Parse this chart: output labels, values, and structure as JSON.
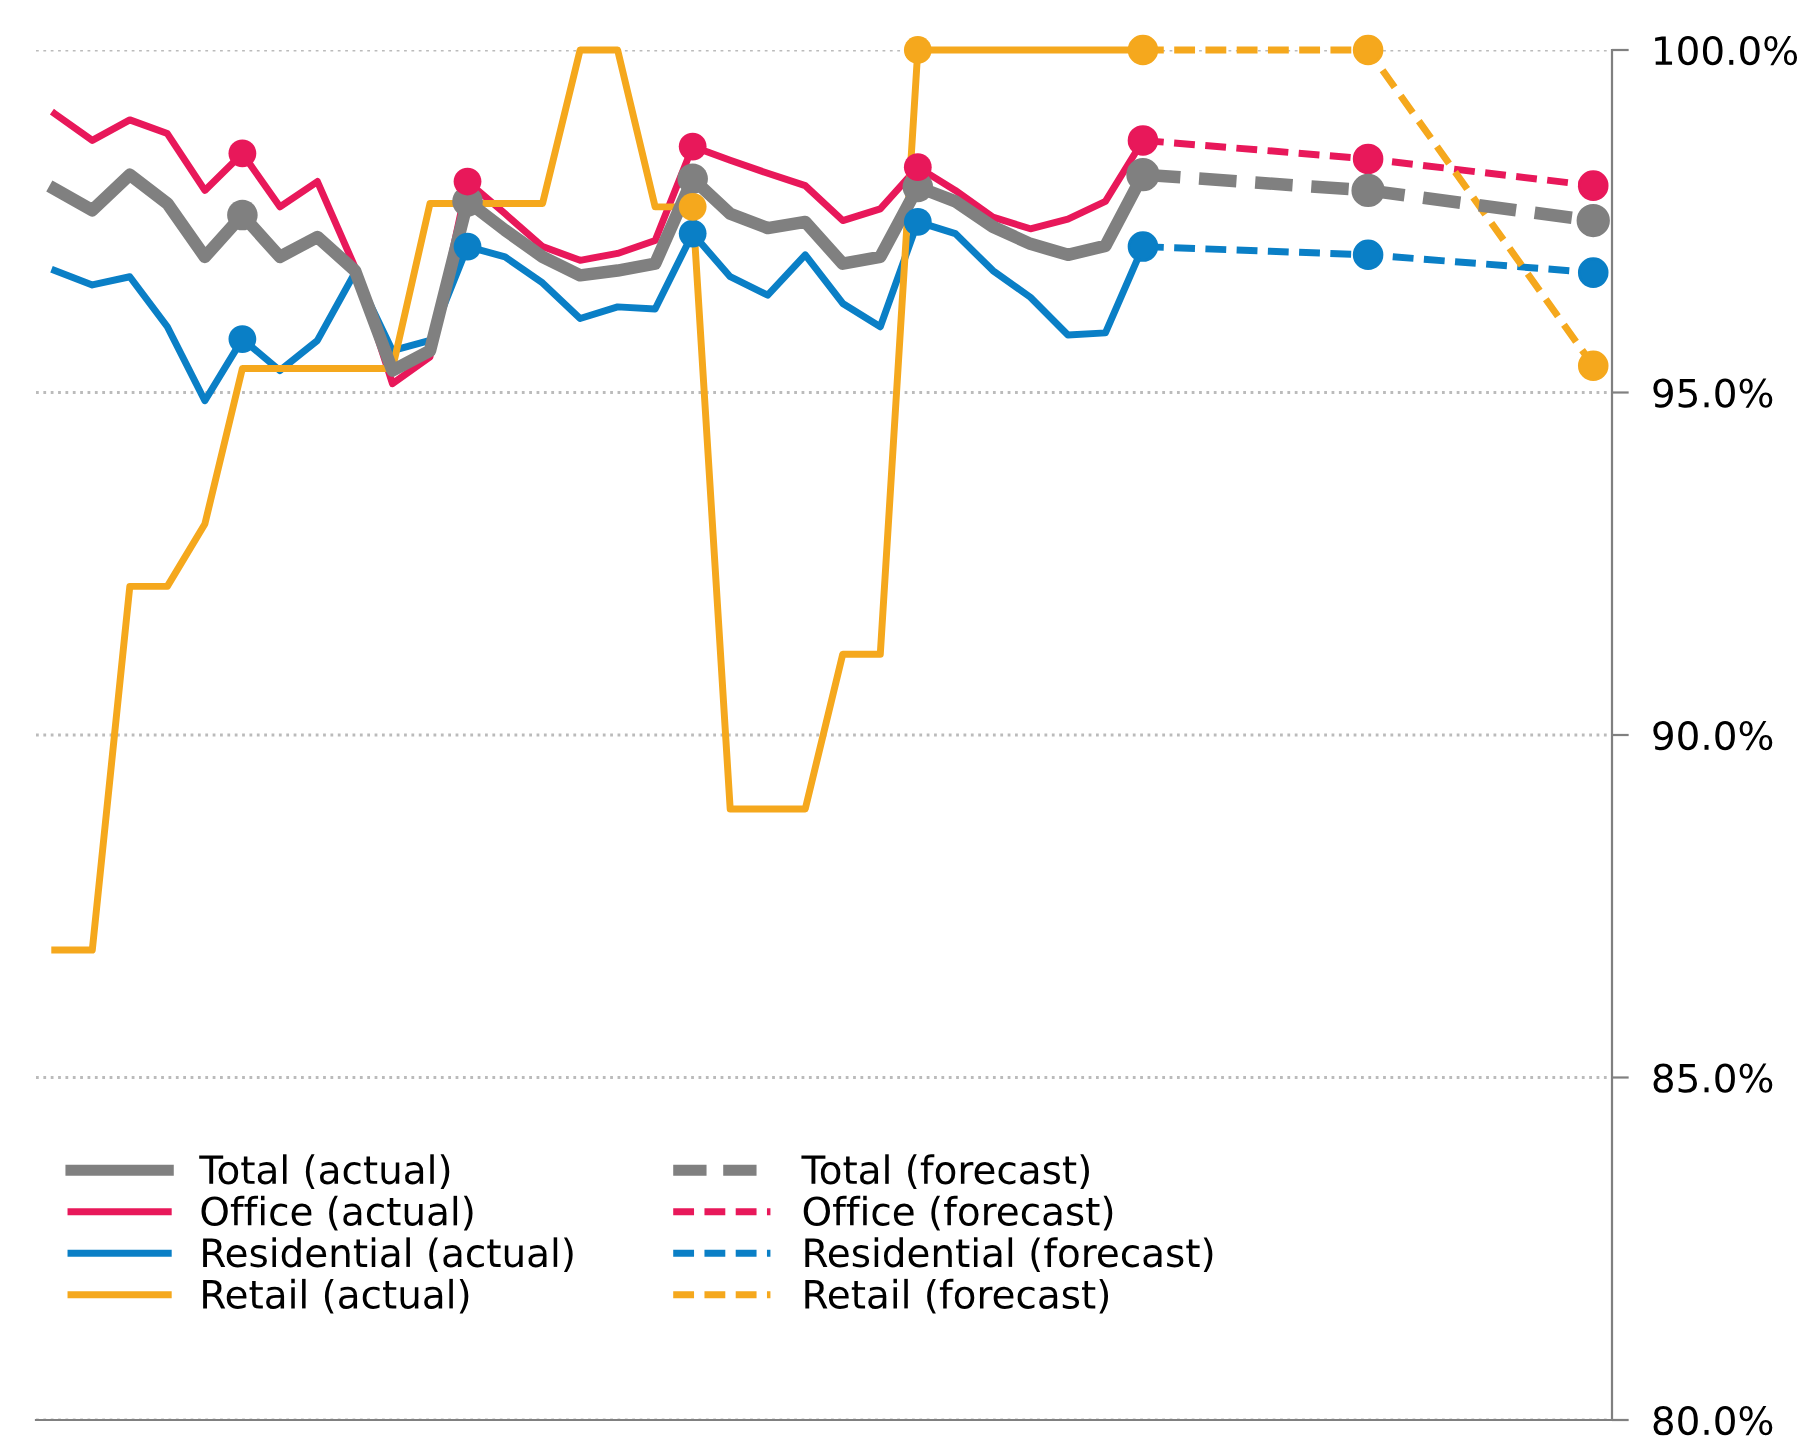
{
  "chart_data": {
    "type": "line",
    "categories": [
      null,
      null,
      null,
      null,
      null,
      null,
      null,
      null,
      null,
      null,
      null,
      null,
      null,
      null,
      null,
      null,
      null,
      null,
      null,
      null,
      null,
      null,
      null,
      null,
      null,
      null,
      null,
      null,
      null,
      null,
      null,
      null,
      null,
      null,
      null,
      null,
      null,
      null,
      null,
      null,
      null,
      null
    ],
    "ylim": [
      80,
      100
    ],
    "yticks": [
      {
        "value": 80,
        "label": "80.0%"
      },
      {
        "value": 85,
        "label": "85.0%"
      },
      {
        "value": 90,
        "label": "90.0%"
      },
      {
        "value": 95,
        "label": "95.0%"
      },
      {
        "value": 100,
        "label": "100.0%"
      }
    ],
    "tick_labels": "y",
    "grid": "y",
    "legend": "bottom left",
    "marker": "none",
    "series": [
      {
        "name": "Total (actual)",
        "color": "#808080",
        "line_style": "solid",
        "values": [
          97.97,
          97.66,
          98.18,
          97.76,
          96.98,
          97.59,
          96.98,
          97.27,
          96.78,
          95.32,
          95.61,
          97.79,
          97.37,
          96.98,
          96.71,
          96.78,
          96.88,
          98.12,
          97.61,
          97.4,
          97.49,
          96.88,
          96.98,
          98.0,
          97.79,
          97.42,
          97.17,
          97.01,
          97.14,
          98.18,
          null,
          null,
          null,
          null,
          null,
          null,
          null,
          null,
          null,
          null,
          null,
          null
        ]
      },
      {
        "name": "Office (actual)",
        "color": "#e8185a",
        "line_style": "solid",
        "values": [
          99.07,
          98.68,
          98.98,
          98.78,
          97.95,
          98.49,
          97.71,
          98.08,
          96.83,
          95.13,
          95.52,
          98.08,
          97.61,
          97.13,
          96.93,
          97.03,
          97.22,
          98.59,
          98.39,
          98.2,
          98.02,
          97.51,
          97.68,
          98.29,
          97.95,
          97.56,
          97.39,
          97.53,
          97.79,
          98.68,
          null,
          null,
          null,
          null,
          null,
          null,
          null,
          null,
          null,
          null,
          null,
          null
        ]
      },
      {
        "name": "Residential (actual)",
        "color": "#0a7fc6",
        "line_style": "solid",
        "values": [
          96.78,
          96.57,
          96.69,
          95.96,
          94.88,
          95.78,
          95.32,
          95.76,
          96.75,
          95.61,
          95.76,
          97.13,
          96.98,
          96.6,
          96.08,
          96.25,
          96.22,
          97.32,
          96.69,
          96.42,
          97.01,
          96.3,
          95.96,
          97.49,
          97.32,
          96.78,
          96.39,
          95.84,
          95.87,
          97.13,
          null,
          null,
          null,
          null,
          null,
          null,
          null,
          null,
          null,
          null,
          null,
          null
        ]
      },
      {
        "name": "Retail (actual)",
        "color": "#f5a81d",
        "line_style": "solid",
        "values": [
          86.86,
          86.86,
          92.17,
          92.17,
          93.08,
          95.35,
          95.35,
          95.35,
          95.35,
          95.35,
          97.76,
          97.76,
          97.76,
          97.76,
          100,
          100,
          97.71,
          97.71,
          88.92,
          88.92,
          88.92,
          91.18,
          91.18,
          100,
          100,
          100,
          100,
          100,
          100,
          100,
          null,
          null,
          null,
          null,
          null,
          null,
          null,
          null,
          null,
          null,
          null,
          null
        ]
      },
      {
        "type": "scatter",
        "color": "#808080",
        "marker": "circle",
        "values": [
          null,
          null,
          null,
          null,
          null,
          97.59,
          null,
          null,
          null,
          null,
          null,
          97.79,
          null,
          null,
          null,
          null,
          null,
          98.12,
          null,
          null,
          null,
          null,
          null,
          98.0,
          null,
          null,
          null,
          null,
          null,
          null,
          null,
          null,
          null,
          null,
          null,
          null,
          null,
          null,
          null,
          null,
          null,
          null
        ]
      },
      {
        "type": "scatter",
        "color": "#e8185a",
        "marker": "circle",
        "values": [
          null,
          null,
          null,
          null,
          null,
          98.49,
          null,
          null,
          null,
          null,
          null,
          98.08,
          null,
          null,
          null,
          null,
          null,
          98.59,
          null,
          null,
          null,
          null,
          null,
          98.29,
          null,
          null,
          null,
          null,
          null,
          null,
          null,
          null,
          null,
          null,
          null,
          null,
          null,
          null,
          null,
          null,
          null,
          null
        ]
      },
      {
        "type": "scatter",
        "color": "#0a7fc6",
        "marker": "circle",
        "values": [
          null,
          null,
          null,
          null,
          null,
          95.78,
          null,
          null,
          null,
          null,
          null,
          97.13,
          null,
          null,
          null,
          null,
          null,
          97.32,
          null,
          null,
          null,
          null,
          null,
          97.49,
          null,
          null,
          null,
          null,
          null,
          null,
          null,
          null,
          null,
          null,
          null,
          null,
          null,
          null,
          null,
          null,
          null,
          null
        ]
      },
      {
        "type": "scatter",
        "color": "#f5a81d",
        "marker": "circle",
        "values": [
          null,
          null,
          null,
          null,
          null,
          null,
          null,
          null,
          null,
          null,
          null,
          null,
          null,
          null,
          null,
          null,
          null,
          97.71,
          null,
          null,
          null,
          null,
          null,
          100,
          null,
          null,
          null,
          null,
          null,
          null,
          null,
          null,
          null,
          null,
          null,
          null,
          null,
          null,
          null,
          null,
          null,
          null
        ]
      },
      {
        "name": "Total (forecast)",
        "color": "#808080",
        "line_style": "dashed",
        "marker": "circle",
        "values": [
          null,
          null,
          null,
          null,
          null,
          null,
          null,
          null,
          null,
          null,
          null,
          null,
          null,
          null,
          null,
          null,
          null,
          null,
          null,
          null,
          null,
          null,
          null,
          null,
          null,
          null,
          null,
          null,
          null,
          98.18,
          null,
          null,
          null,
          null,
          null,
          97.95,
          null,
          null,
          null,
          null,
          null,
          97.51
        ]
      },
      {
        "name": "Office (forecast)",
        "color": "#e8185a",
        "line_style": "dashed",
        "marker": "circle",
        "values": [
          null,
          null,
          null,
          null,
          null,
          null,
          null,
          null,
          null,
          null,
          null,
          null,
          null,
          null,
          null,
          null,
          null,
          null,
          null,
          null,
          null,
          null,
          null,
          null,
          null,
          null,
          null,
          null,
          null,
          98.68,
          null,
          null,
          null,
          null,
          null,
          98.41,
          null,
          null,
          null,
          null,
          null,
          98.02
        ]
      },
      {
        "name": "Residential (forecast)",
        "color": "#0a7fc6",
        "line_style": "dashed",
        "marker": "circle",
        "values": [
          null,
          null,
          null,
          null,
          null,
          null,
          null,
          null,
          null,
          null,
          null,
          null,
          null,
          null,
          null,
          null,
          null,
          null,
          null,
          null,
          null,
          null,
          null,
          null,
          null,
          null,
          null,
          null,
          null,
          97.13,
          null,
          null,
          null,
          null,
          null,
          97.01,
          null,
          null,
          null,
          null,
          null,
          96.75
        ]
      },
      {
        "name": "Retail (forecast)",
        "color": "#f5a81d",
        "line_style": "dashed",
        "marker": "circle",
        "values": [
          null,
          null,
          null,
          null,
          null,
          null,
          null,
          null,
          null,
          null,
          null,
          null,
          null,
          null,
          null,
          null,
          null,
          null,
          null,
          null,
          null,
          null,
          null,
          null,
          null,
          null,
          null,
          null,
          null,
          100,
          null,
          null,
          null,
          null,
          null,
          100,
          null,
          null,
          null,
          null,
          null,
          95.39
        ]
      }
    ]
  }
}
